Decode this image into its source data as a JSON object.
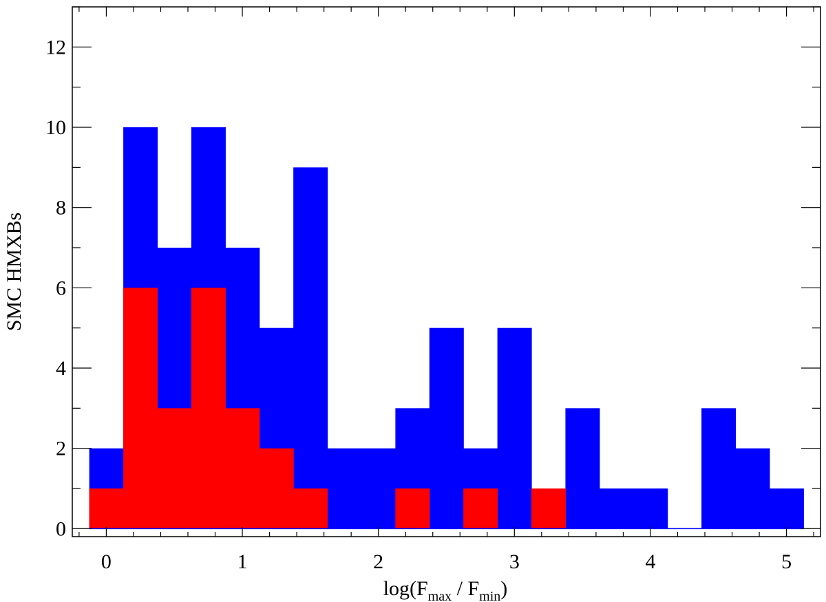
{
  "chart_data": {
    "type": "bar",
    "title": "",
    "xlabel": {
      "prefix": "log(F",
      "sub1": "max",
      "mid": " / F",
      "sub2": "min",
      "suffix": ")"
    },
    "ylabel": "SMC HMXBs",
    "xlim": [
      -0.25,
      5.25
    ],
    "ylim": [
      -0.2,
      13
    ],
    "bin_width": 0.25,
    "x": [
      0.0,
      0.25,
      0.5,
      0.75,
      1.0,
      1.25,
      1.5,
      1.75,
      2.0,
      2.25,
      2.5,
      2.75,
      3.0,
      3.25,
      3.5,
      3.75,
      4.0,
      4.25,
      4.5,
      4.75,
      5.0
    ],
    "series": [
      {
        "color": "#0000ff",
        "values": [
          2,
          10,
          7,
          10,
          7,
          5,
          9,
          2,
          2,
          3,
          5,
          2,
          5,
          0,
          3,
          1,
          1,
          0,
          3,
          2,
          1
        ]
      },
      {
        "color": "#ff0000",
        "values": [
          1,
          6,
          3,
          6,
          3,
          2,
          1,
          0,
          0,
          1,
          0,
          1,
          0,
          1,
          0,
          0,
          0,
          0,
          0,
          0,
          0
        ]
      }
    ],
    "xticks": [
      0,
      1,
      2,
      3,
      4,
      5
    ],
    "xtick_labels": [
      "0",
      "1",
      "2",
      "3",
      "4",
      "5"
    ],
    "yticks": [
      0,
      2,
      4,
      6,
      8,
      10,
      12
    ],
    "ytick_labels": [
      "0",
      "2",
      "4",
      "6",
      "8",
      "10",
      "12"
    ],
    "grid": false,
    "legend": "none"
  }
}
